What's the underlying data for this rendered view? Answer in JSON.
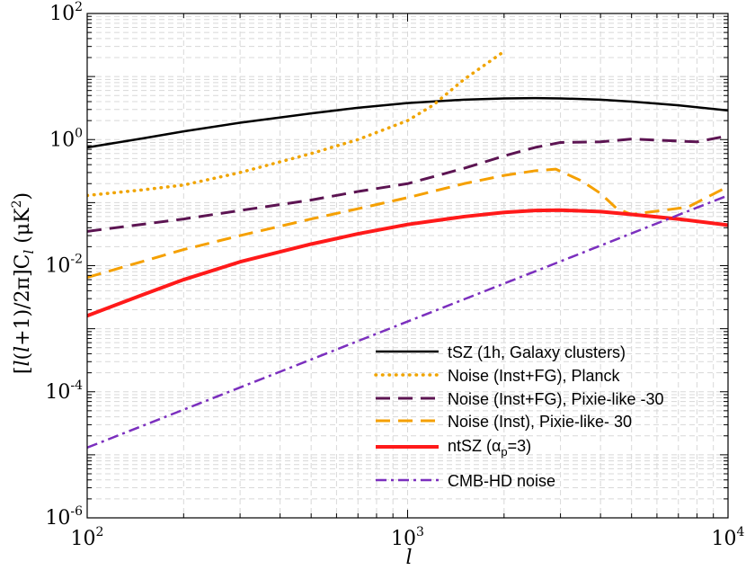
{
  "chart_data": {
    "type": "line",
    "xscale": "log",
    "yscale": "log",
    "xlim": [
      100,
      10000
    ],
    "ylim": [
      1e-06,
      100
    ],
    "xlabel": "l",
    "ylabel": "[l(l+1)/2π]C_l (μK²)",
    "ylabel_parts": {
      "prefix": "[",
      "l1": "l",
      "mid": "(",
      "l2": "l",
      "rest": "+1)/2π]C",
      "sub": "l",
      "units": " (μK",
      "sup": "2",
      "close": ")"
    },
    "x_ticks": [
      {
        "value": 100,
        "base": "10",
        "exp": "2"
      },
      {
        "value": 1000,
        "base": "10",
        "exp": "3"
      },
      {
        "value": 10000,
        "base": "10",
        "exp": "4"
      }
    ],
    "y_ticks": [
      {
        "value": 100,
        "base": "10",
        "exp": "2"
      },
      {
        "value": 1,
        "base": "10",
        "exp": "0"
      },
      {
        "value": 0.01,
        "base": "10",
        "exp": "-2"
      },
      {
        "value": 0.0001,
        "base": "10",
        "exp": "-4"
      },
      {
        "value": 1e-06,
        "base": "10",
        "exp": "-6"
      }
    ],
    "grid": true,
    "legend_position": "lower-right",
    "series": [
      {
        "name": "tSZ (1h, Galaxy clusters)",
        "color": "#000000",
        "style": "solid",
        "x": [
          100,
          150,
          200,
          300,
          500,
          700,
          1000,
          1500,
          2000,
          2500,
          3000,
          4000,
          5000,
          7000,
          10000
        ],
        "y": [
          0.75,
          1.05,
          1.35,
          1.85,
          2.6,
          3.2,
          3.8,
          4.3,
          4.5,
          4.55,
          4.5,
          4.3,
          4.0,
          3.5,
          2.9
        ]
      },
      {
        "name": "Noise (Inst+FG), Planck",
        "color": "#f0a400",
        "style": "dotted",
        "x": [
          100,
          150,
          200,
          300,
          500,
          700,
          1000,
          1200,
          1500,
          2000
        ],
        "y": [
          0.13,
          0.16,
          0.19,
          0.3,
          0.6,
          1.0,
          2.0,
          3.5,
          9.0,
          25.0
        ]
      },
      {
        "name": "Noise (Inst+FG), Pixie-like -30",
        "color": "#5c1452",
        "style": "dashed",
        "x": [
          100,
          200,
          300,
          500,
          700,
          1000,
          1500,
          2000,
          2500,
          3000,
          4000,
          5000,
          6000,
          8000,
          10000
        ],
        "y": [
          0.035,
          0.055,
          0.075,
          0.11,
          0.15,
          0.2,
          0.35,
          0.55,
          0.75,
          0.9,
          0.92,
          1.02,
          0.98,
          0.92,
          1.15
        ]
      },
      {
        "name": "Noise (Inst), Pixie-like- 30",
        "color": "#f5a000",
        "style": "dashed",
        "x": [
          100,
          200,
          300,
          500,
          700,
          1000,
          1500,
          2000,
          2500,
          2900,
          3500,
          4000,
          4500,
          5000,
          7500,
          10000
        ],
        "y": [
          0.0065,
          0.018,
          0.03,
          0.055,
          0.08,
          0.12,
          0.2,
          0.27,
          0.32,
          0.34,
          0.22,
          0.14,
          0.08,
          0.065,
          0.085,
          0.18
        ]
      },
      {
        "name": "ntSZ (α_p=3)",
        "name_parts": {
          "prefix": "ntSZ (α",
          "sub": "p",
          "suffix": "=3)"
        },
        "color": "#ff1a1a",
        "style": "solid-thick",
        "x": [
          100,
          150,
          200,
          300,
          500,
          700,
          1000,
          1500,
          2000,
          2500,
          3000,
          4000,
          5000,
          7000,
          10000
        ],
        "y": [
          0.0016,
          0.0035,
          0.006,
          0.0115,
          0.022,
          0.032,
          0.045,
          0.06,
          0.07,
          0.075,
          0.076,
          0.072,
          0.065,
          0.055,
          0.044
        ]
      },
      {
        "name": "CMB-HD noise",
        "color": "#7b2fbe",
        "style": "dashdot",
        "x": [
          100,
          10000
        ],
        "y": [
          1.3e-05,
          0.13
        ]
      }
    ]
  }
}
